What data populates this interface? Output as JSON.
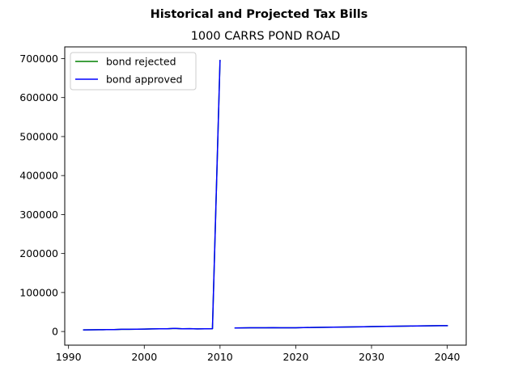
{
  "chart_data": {
    "type": "line",
    "title": "Historical and Projected Tax Bills",
    "subtitle": "1000 CARRS POND ROAD",
    "xlabel": "",
    "ylabel": "",
    "xlim": [
      1989.5,
      2042.5
    ],
    "ylim": [
      -35000,
      730000
    ],
    "xticks": [
      1990,
      2000,
      2010,
      2020,
      2030,
      2040
    ],
    "yticks": [
      0,
      100000,
      200000,
      300000,
      400000,
      500000,
      600000,
      700000
    ],
    "grid": false,
    "legend_position": "top-left",
    "series": [
      {
        "name": "bond rejected",
        "color": "#008000",
        "segments": [
          {
            "x": [
              1992,
              1993,
              1994,
              1995,
              1996,
              1997,
              1998,
              1999,
              2000,
              2001,
              2002,
              2003,
              2004,
              2005,
              2006,
              2007,
              2008,
              2009,
              2010
            ],
            "y": [
              4200,
              4400,
              4600,
              4800,
              5000,
              5600,
              5800,
              6000,
              6200,
              6700,
              6900,
              7100,
              8000,
              7000,
              7200,
              6800,
              7000,
              7200,
              695000
            ]
          },
          {
            "x": [
              2012,
              2013,
              2014,
              2015,
              2016,
              2017,
              2018,
              2019,
              2020,
              2021,
              2022,
              2023,
              2024,
              2025,
              2026,
              2027,
              2028,
              2029,
              2030,
              2031,
              2032,
              2033,
              2034,
              2035,
              2036,
              2037,
              2038,
              2039,
              2040
            ],
            "y": [
              9000,
              9200,
              9500,
              9700,
              9600,
              9800,
              9500,
              9600,
              9700,
              10000,
              10300,
              10500,
              10800,
              11000,
              11300,
              11600,
              12000,
              12200,
              12600,
              12900,
              13200,
              13500,
              13800,
              14000,
              14300,
              14500,
              14700,
              14900,
              15100
            ]
          }
        ]
      },
      {
        "name": "bond approved",
        "color": "#0000ff",
        "segments": [
          {
            "x": [
              1992,
              1993,
              1994,
              1995,
              1996,
              1997,
              1998,
              1999,
              2000,
              2001,
              2002,
              2003,
              2004,
              2005,
              2006,
              2007,
              2008,
              2009,
              2010
            ],
            "y": [
              4200,
              4400,
              4600,
              4800,
              5000,
              5600,
              5800,
              6000,
              6200,
              6700,
              6900,
              7100,
              8000,
              7000,
              7200,
              6800,
              7000,
              7200,
              695000
            ]
          },
          {
            "x": [
              2012,
              2013,
              2014,
              2015,
              2016,
              2017,
              2018,
              2019,
              2020,
              2021,
              2022,
              2023,
              2024,
              2025,
              2026,
              2027,
              2028,
              2029,
              2030,
              2031,
              2032,
              2033,
              2034,
              2035,
              2036,
              2037,
              2038,
              2039,
              2040
            ],
            "y": [
              9000,
              9200,
              9500,
              9700,
              9600,
              9800,
              9500,
              9600,
              9700,
              10000,
              10300,
              10500,
              10800,
              11000,
              11300,
              11600,
              12000,
              12200,
              12600,
              12900,
              13200,
              13500,
              13800,
              14000,
              14300,
              14500,
              14700,
              14900,
              15100
            ]
          }
        ]
      }
    ]
  }
}
